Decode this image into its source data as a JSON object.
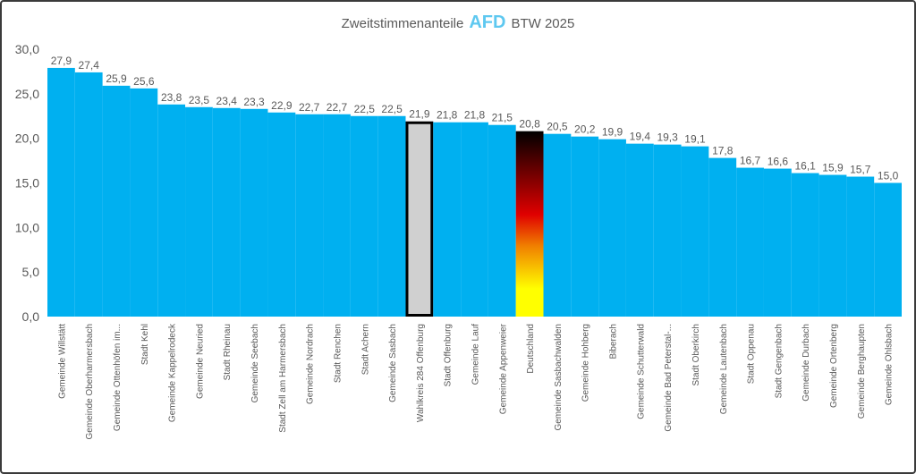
{
  "chart_data": {
    "type": "bar",
    "title_prefix": "Zweitstimmenanteile",
    "title_party": "AFD",
    "title_suffix": "BTW 2025",
    "xlabel": "",
    "ylabel": "",
    "ylim": [
      0,
      30
    ],
    "yticks": [
      "0,0",
      "5,0",
      "10,0",
      "15,0",
      "20,0",
      "25,0",
      "30,0"
    ],
    "ytick_values": [
      0,
      5,
      10,
      15,
      20,
      25,
      30
    ],
    "grid": false,
    "categories": [
      "Gemeinde Willstätt",
      "Gemeinde Oberharmersbach",
      "Gemeinde Ottenhöfen im...",
      "Stadt Kehl",
      "Gemeinde Kappelrodeck",
      "Gemeinde Neuried",
      "Stadt Rheinau",
      "Gemeinde Seebach",
      "Stadt Zell am Harmersbach",
      "Gemeinde Nordrach",
      "Stadt Renchen",
      "Stadt Achern",
      "Gemeinde Sasbach",
      "Wahlkreis 284 Offenburg",
      "Stadt Offenburg",
      "Gemeinde Lauf",
      "Gemeinde Appenweier",
      "Deutschland",
      "Gemeinde Sasbachwalden",
      "Gemeinde Hohberg",
      "Biberach",
      "Gemeinde Schutterwald",
      "Gemeinde Bad Peterstal-...",
      "Stadt Oberkirch",
      "Gemeinde Lautenbach",
      "Stadt Oppenau",
      "Stadt Gengenbach",
      "Gemeinde Durbach",
      "Gemeinde Ortenberg",
      "Gemeinde Berghaupten",
      "Gemeinde Ohlsbach"
    ],
    "values": [
      27.9,
      27.4,
      25.9,
      25.6,
      23.8,
      23.5,
      23.4,
      23.3,
      22.9,
      22.7,
      22.7,
      22.5,
      22.5,
      21.9,
      21.8,
      21.8,
      21.5,
      20.8,
      20.5,
      20.2,
      19.9,
      19.4,
      19.3,
      19.1,
      17.8,
      16.7,
      16.6,
      16.1,
      15.9,
      15.7,
      15.0
    ],
    "labels": [
      "27,9",
      "27,4",
      "25,9",
      "25,6",
      "23,8",
      "23,5",
      "23,4",
      "23,3",
      "22,9",
      "22,7",
      "22,7",
      "22,5",
      "22,5",
      "21,9",
      "21,8",
      "21,8",
      "21,5",
      "20,8",
      "20,5",
      "20,2",
      "19,9",
      "19,4",
      "19,3",
      "19,1",
      "17,8",
      "16,7",
      "16,6",
      "16,1",
      "15,9",
      "15,7",
      "15,0"
    ],
    "colors": {
      "default": "#00b0f0",
      "wahlkreis": "#d0d0d0",
      "text": "#595959"
    },
    "highlight": {
      "Wahlkreis 284 Offenburg": "wahlkreis",
      "Deutschland": "flag"
    }
  }
}
